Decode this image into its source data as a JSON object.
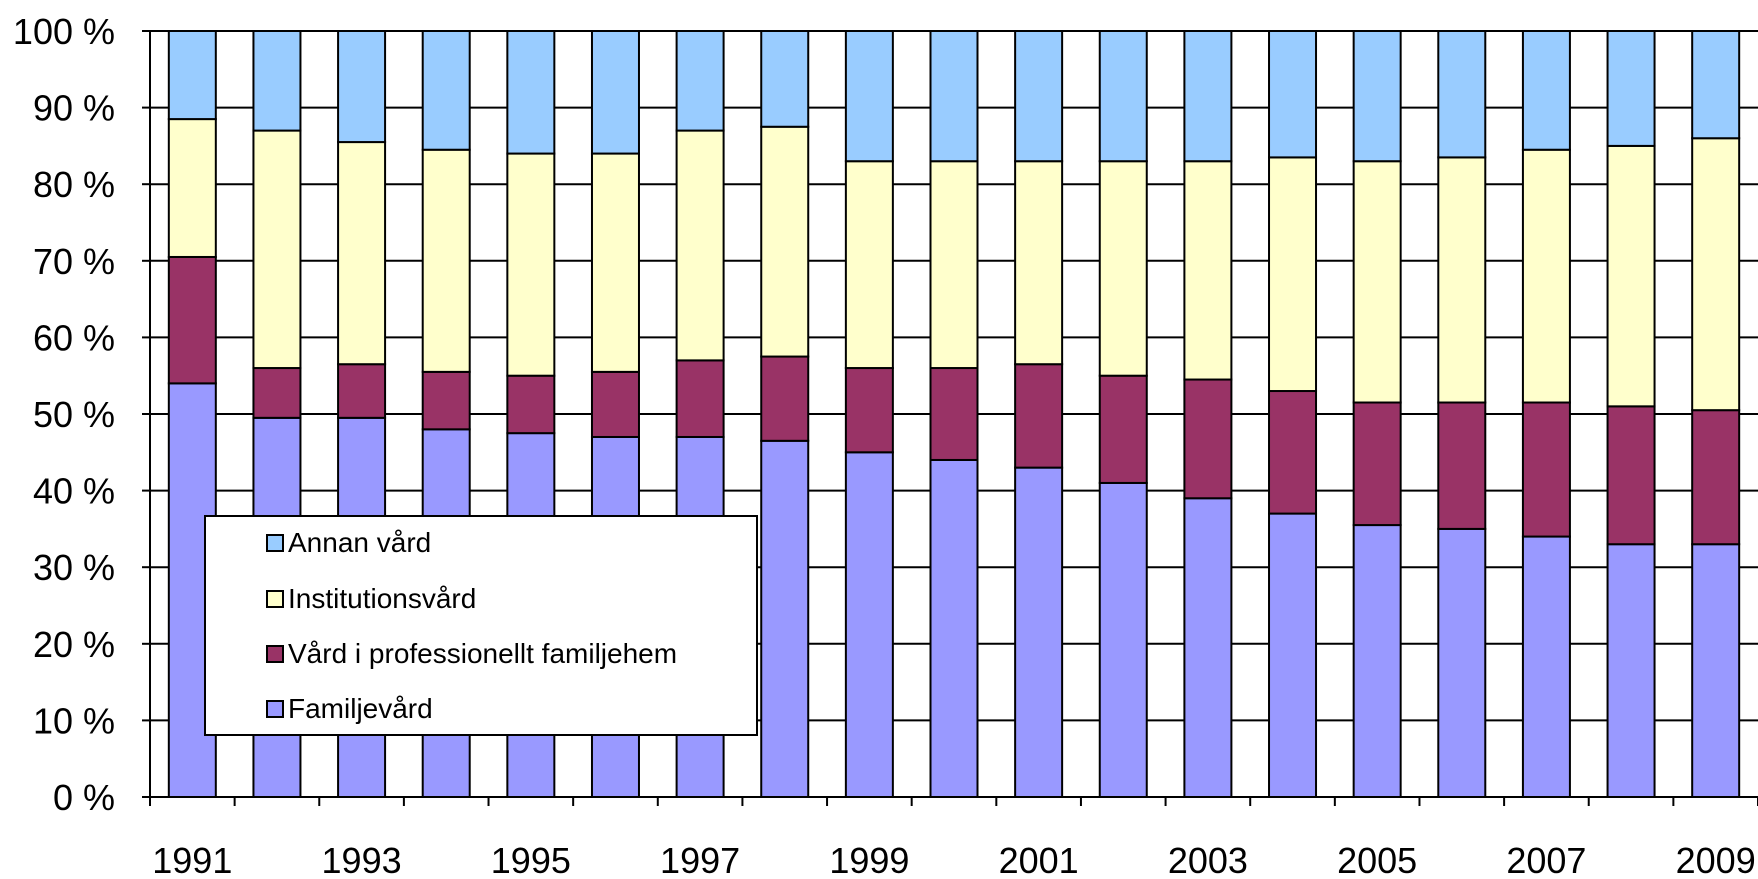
{
  "chart_data": {
    "type": "bar",
    "stacked": true,
    "title": "",
    "xlabel": "",
    "ylabel": "",
    "ylim": [
      0,
      100
    ],
    "y_ticks": [
      "0 %",
      "10 %",
      "20 %",
      "30 %",
      "40 %",
      "50 %",
      "60 %",
      "70 %",
      "80 %",
      "90 %",
      "100 %"
    ],
    "categories": [
      "1991",
      "1992",
      "1993",
      "1994",
      "1995",
      "1996",
      "1997",
      "1998",
      "1999",
      "2000",
      "2001",
      "2002",
      "2003",
      "2004",
      "2005",
      "2006",
      "2007",
      "2008",
      "2009"
    ],
    "x_tick_labels": [
      "1991",
      "",
      "1993",
      "",
      "1995",
      "",
      "1997",
      "",
      "1999",
      "",
      "2001",
      "",
      "2003",
      "",
      "2005",
      "",
      "2007",
      "",
      "2009"
    ],
    "series": [
      {
        "name": "Familjevård",
        "color": "#9999ff",
        "values": [
          54,
          49.5,
          49.5,
          48,
          47.5,
          47,
          47,
          46.5,
          45,
          44,
          43,
          41,
          39,
          37,
          35.5,
          35,
          34,
          33,
          33
        ]
      },
      {
        "name": "Vård i professionellt familjehem",
        "color": "#993366",
        "values": [
          16.5,
          6.5,
          7,
          7.5,
          7.5,
          8.5,
          10,
          11,
          11,
          12,
          13.5,
          14,
          15.5,
          16,
          16,
          16.5,
          17.5,
          18,
          17.5
        ]
      },
      {
        "name": "Institutionsvård",
        "color": "#ffffcc",
        "values": [
          18,
          31,
          29,
          29,
          29,
          28.5,
          30,
          30,
          27,
          27,
          26.5,
          28,
          28.5,
          30.5,
          31.5,
          32,
          33,
          34,
          35.5
        ]
      },
      {
        "name": "Annan vård",
        "color": "#99ccff",
        "values": [
          11.5,
          13,
          14.5,
          15.5,
          16,
          16,
          13,
          12.5,
          17,
          17,
          17,
          17,
          17,
          16.5,
          17,
          16.5,
          15.5,
          15,
          14
        ]
      }
    ],
    "grid": true,
    "legend_position": "lower-left",
    "legend_order": [
      "Annan vård",
      "Institutionsvård",
      "Vård i professionellt familjehem",
      "Familjevård"
    ]
  }
}
